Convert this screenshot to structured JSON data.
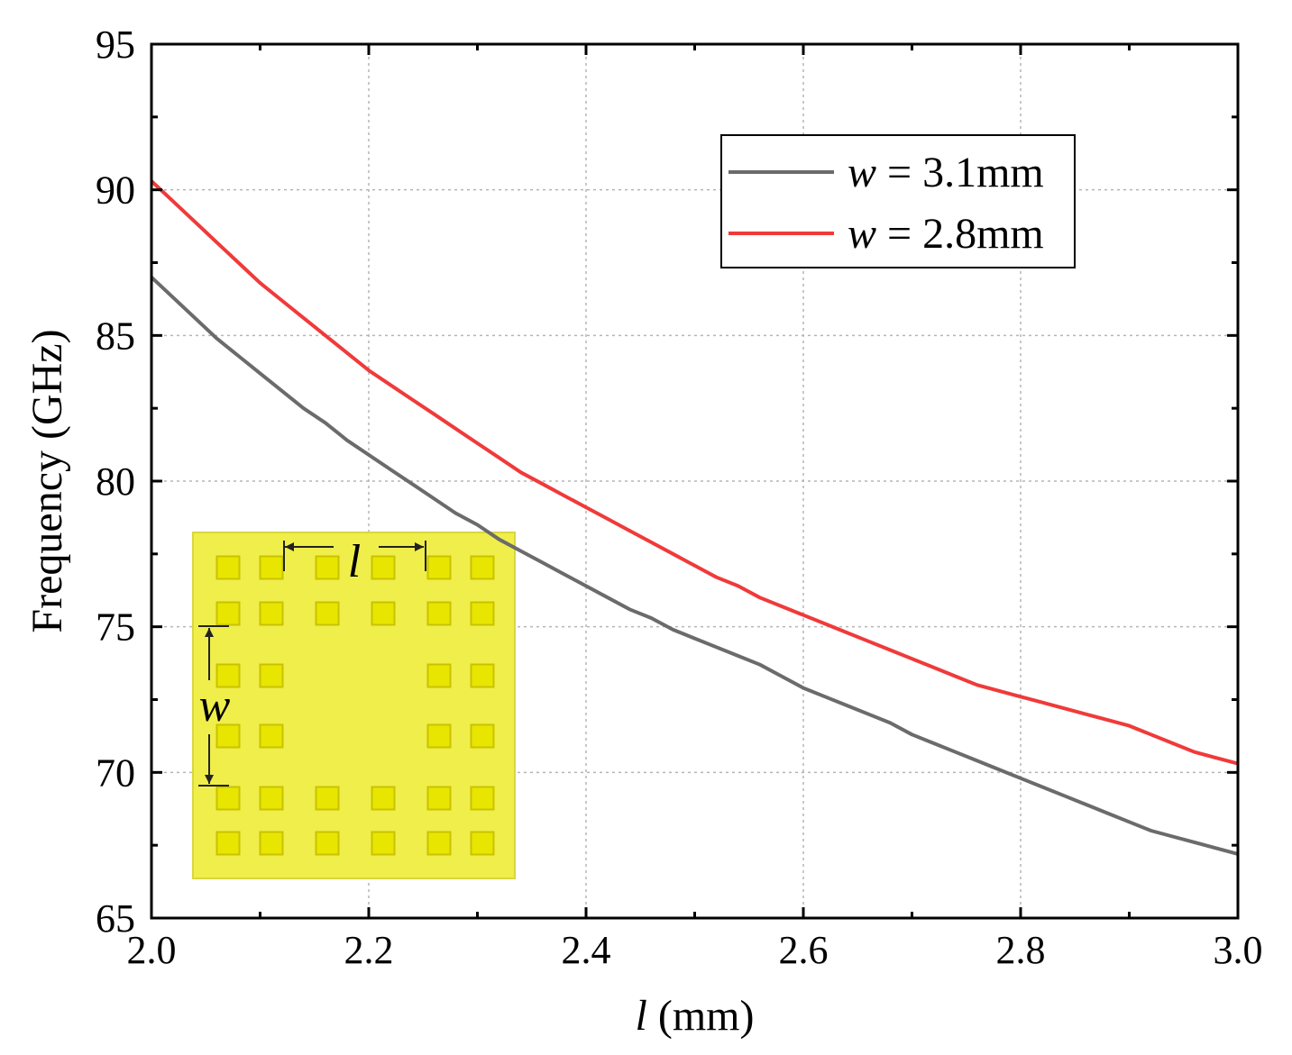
{
  "chart_data": {
    "type": "line",
    "title": "",
    "xlabel": {
      "var": "l",
      "unit": " (mm)"
    },
    "ylabel": "Frequency (GHz)",
    "xlim": [
      2.0,
      3.0
    ],
    "ylim": [
      65,
      95
    ],
    "xticks": [
      2.0,
      2.2,
      2.4,
      2.6,
      2.8,
      3.0
    ],
    "xtick_labels": [
      "2.0",
      "2.2",
      "2.4",
      "2.6",
      "2.8",
      "3.0"
    ],
    "yticks": [
      65,
      70,
      75,
      80,
      85,
      90,
      95
    ],
    "ytick_labels": [
      "65",
      "70",
      "75",
      "80",
      "85",
      "90",
      "95"
    ],
    "grid": true,
    "legend_position": "top-right",
    "series": [
      {
        "name": "w = 3.1mm",
        "legend_var": "w",
        "legend_rest": " = 3.1mm",
        "color": "#6b6b6b",
        "x": [
          2.0,
          2.02,
          2.04,
          2.06,
          2.08,
          2.1,
          2.12,
          2.14,
          2.16,
          2.18,
          2.2,
          2.22,
          2.24,
          2.26,
          2.28,
          2.3,
          2.32,
          2.34,
          2.36,
          2.38,
          2.4,
          2.42,
          2.44,
          2.46,
          2.48,
          2.5,
          2.52,
          2.54,
          2.56,
          2.58,
          2.6,
          2.62,
          2.64,
          2.66,
          2.68,
          2.7,
          2.72,
          2.74,
          2.76,
          2.78,
          2.8,
          2.82,
          2.84,
          2.86,
          2.88,
          2.9,
          2.92,
          2.94,
          2.96,
          2.98,
          3.0
        ],
        "y": [
          87.0,
          86.3,
          85.6,
          84.9,
          84.3,
          83.7,
          83.1,
          82.5,
          82.0,
          81.4,
          80.9,
          80.4,
          79.9,
          79.4,
          78.9,
          78.5,
          78.0,
          77.6,
          77.2,
          76.8,
          76.4,
          76.0,
          75.6,
          75.3,
          74.9,
          74.6,
          74.3,
          74.0,
          73.7,
          73.3,
          72.9,
          72.6,
          72.3,
          72.0,
          71.7,
          71.3,
          71.0,
          70.7,
          70.4,
          70.1,
          69.8,
          69.5,
          69.2,
          68.9,
          68.6,
          68.3,
          68.0,
          67.8,
          67.6,
          67.4,
          67.2
        ]
      },
      {
        "name": "w = 2.8mm",
        "legend_var": "w",
        "legend_rest": " = 2.8mm",
        "color": "#f03a3a",
        "x": [
          2.0,
          2.02,
          2.04,
          2.06,
          2.08,
          2.1,
          2.12,
          2.14,
          2.16,
          2.18,
          2.2,
          2.22,
          2.24,
          2.26,
          2.28,
          2.3,
          2.32,
          2.34,
          2.36,
          2.38,
          2.4,
          2.42,
          2.44,
          2.46,
          2.48,
          2.5,
          2.52,
          2.54,
          2.56,
          2.58,
          2.6,
          2.62,
          2.64,
          2.66,
          2.68,
          2.7,
          2.72,
          2.74,
          2.76,
          2.78,
          2.8,
          2.82,
          2.84,
          2.86,
          2.88,
          2.9,
          2.92,
          2.94,
          2.96,
          2.98,
          3.0
        ],
        "y": [
          90.3,
          89.6,
          88.9,
          88.2,
          87.5,
          86.8,
          86.2,
          85.6,
          85.0,
          84.4,
          83.8,
          83.3,
          82.8,
          82.3,
          81.8,
          81.3,
          80.8,
          80.3,
          79.9,
          79.5,
          79.1,
          78.7,
          78.3,
          77.9,
          77.5,
          77.1,
          76.7,
          76.4,
          76.0,
          75.7,
          75.4,
          75.1,
          74.8,
          74.5,
          74.2,
          73.9,
          73.6,
          73.3,
          73.0,
          72.8,
          72.6,
          72.4,
          72.2,
          72.0,
          71.8,
          71.6,
          71.3,
          71.0,
          70.7,
          70.5,
          70.3
        ]
      }
    ],
    "inset": {
      "description_labels": {
        "horizontal": "l",
        "vertical": "w"
      },
      "colors": {
        "background": "#f0ee4a",
        "cell": "#e8e600",
        "cell_border": "#c9c300"
      },
      "grid_rows": [
        [
          1,
          1,
          1,
          1,
          1,
          1
        ],
        [
          1,
          1,
          1,
          1,
          1,
          1
        ],
        [
          1,
          1,
          0,
          0,
          1,
          1
        ],
        [
          1,
          1,
          0,
          0,
          1,
          1
        ],
        [
          1,
          1,
          1,
          1,
          1,
          1
        ],
        [
          1,
          1,
          1,
          1,
          1,
          1
        ]
      ]
    }
  }
}
